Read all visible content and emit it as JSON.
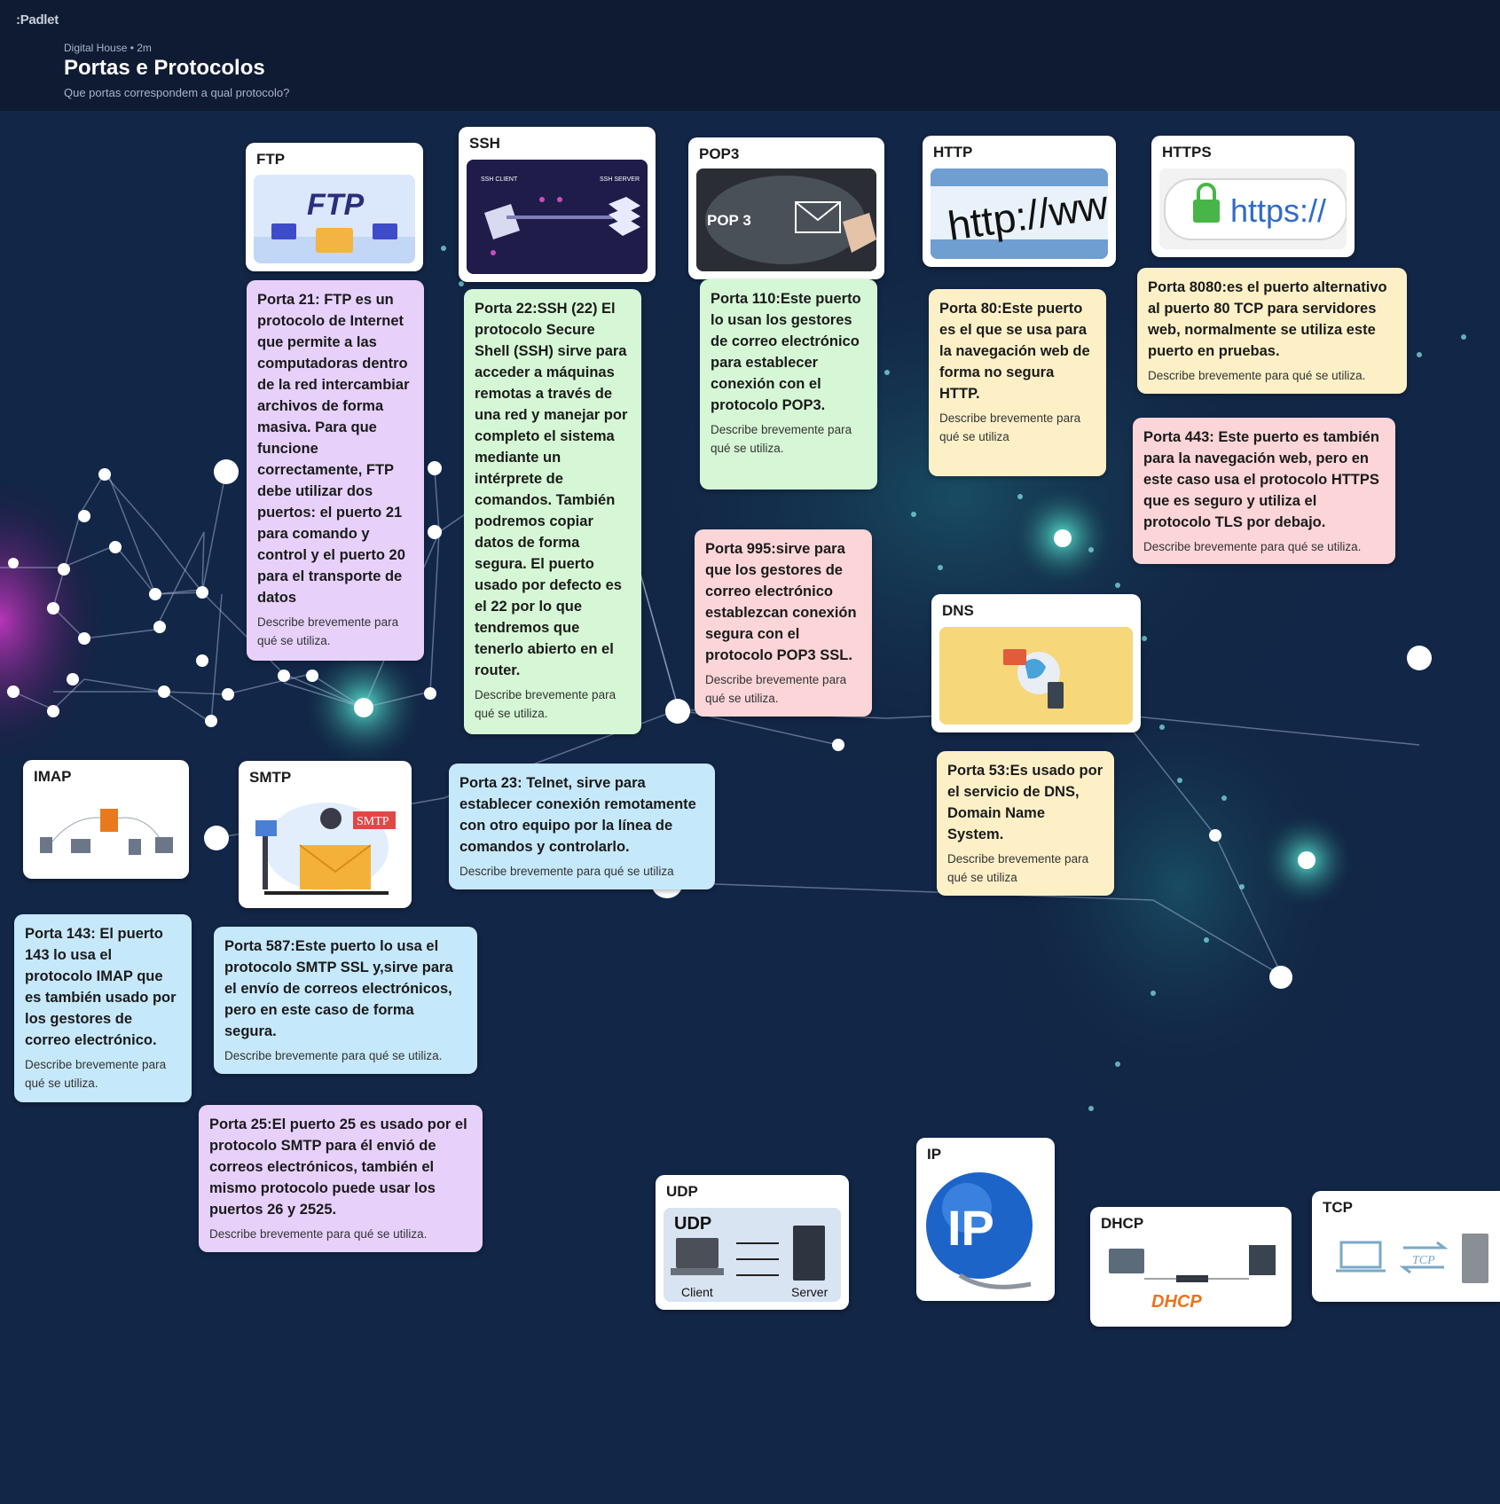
{
  "app": {
    "logo": ":Padlet"
  },
  "header": {
    "meta": "Digital House • 2m",
    "title": "Portas e Protocolos",
    "subtitle": "Que portas correspondem a qual protocolo?"
  },
  "cards": {
    "ftp": {
      "title": "FTP",
      "thumb_text": "FTP"
    },
    "ssh": {
      "title": "SSH",
      "client": "SSH CLIENT",
      "server": "SSH SERVER"
    },
    "pop3": {
      "title": "POP3",
      "thumb_text": "POP 3"
    },
    "http": {
      "title": "HTTP",
      "thumb_text": "http://ww"
    },
    "https": {
      "title": "HTTPS",
      "thumb_text": "https://"
    },
    "dns": {
      "title": "DNS"
    },
    "imap": {
      "title": "IMAP"
    },
    "smtp": {
      "title": "SMTP",
      "thumb_text": "SMTP"
    },
    "udp": {
      "title": "UDP",
      "thumb_title": "UDP",
      "client": "Client",
      "server": "Server"
    },
    "ip": {
      "title": "IP",
      "thumb_text": "IP"
    },
    "dhcp": {
      "title": "DHCP",
      "thumb_text": "DHCP"
    },
    "tcp": {
      "title": "TCP",
      "thumb_text": "TCP"
    }
  },
  "notes": {
    "ftp": {
      "text": "Porta 21: FTP es un protocolo de Internet que permite a las computadoras dentro de la red intercambiar archivos de forma masiva. Para que funcione correctamente, FTP debe utilizar dos puertos: el puerto 21 para comando y control y el puerto 20 para el transporte de datos",
      "sub": "Describe brevemente para qué se utiliza."
    },
    "ssh": {
      "text": "Porta 22:SSH (22) El protocolo Secure Shell (SSH) sirve para acceder a máquinas remotas a través de una red y manejar por completo el sistema mediante un intérprete de comandos. También podremos copiar datos de forma segura. El puerto usado por defecto es el 22 por lo que tendremos que tenerlo abierto en el router.",
      "sub": "Describe brevemente para qué se utiliza."
    },
    "pop3_110": {
      "text": "Porta 110:Este puerto lo usan los gestores de correo electrónico para establecer conexión con el protocolo POP3.",
      "sub": "Describe brevemente para qué se utiliza."
    },
    "pop3_995": {
      "text": "Porta 995:sirve para que los gestores de correo electrónico establezcan conexión segura con el protocolo POP3 SSL.",
      "sub": "Describe brevemente para qué se utiliza."
    },
    "http_80": {
      "text": "Porta 80:Este puerto es el que se usa para la navegación web de forma no segura HTTP.",
      "sub": "Describe brevemente para qué se utiliza"
    },
    "https_8080": {
      "text": "Porta 8080:es el puerto alternativo al puerto 80 TCP para servidores web, normalmente se utiliza este puerto en pruebas.",
      "sub": "Describe brevemente para qué se utiliza."
    },
    "https_443": {
      "text": "Porta 443: Este puerto es también para la navegación web, pero en este caso usa el protocolo HTTPS que es seguro y utiliza el protocolo TLS por debajo.",
      "sub": "Describe brevemente para qué se utiliza."
    },
    "dns_53": {
      "text": "Porta 53:Es usado por el servicio de DNS, Domain Name System.",
      "sub": "Describe brevemente para qué se utiliza"
    },
    "telnet_23": {
      "text": "Porta 23: Telnet, sirve para establecer conexión remotamente con otro equipo por la línea de comandos y controlarlo.",
      "sub": "Describe brevemente para qué se utiliza"
    },
    "imap_143": {
      "text": "Porta 143: El puerto 143 lo usa el protocolo IMAP que es también usado por los gestores de correo electrónico.",
      "sub": "Describe brevemente para qué se utiliza."
    },
    "smtp_587": {
      "text": "Porta 587:Este puerto lo usa el protocolo SMTP SSL y,sirve para el envío de correos electrónicos, pero en este caso de forma segura.",
      "sub": "Describe brevemente para qué se utiliza."
    },
    "smtp_25": {
      "text": "Porta 25:El puerto 25 es usado por el protocolo SMTP para él envió de correos electrónicos, también el mismo protocolo puede usar los puertos 26 y 2525.",
      "sub": "Describe brevemente para qué se utiliza."
    }
  },
  "colors": {
    "background": "#0f1b33",
    "purple": "#e7d1fb",
    "green": "#d5f7d5",
    "yellow": "#fdf0c7",
    "pink": "#fbd5d8",
    "blue": "#c6e8fb"
  }
}
